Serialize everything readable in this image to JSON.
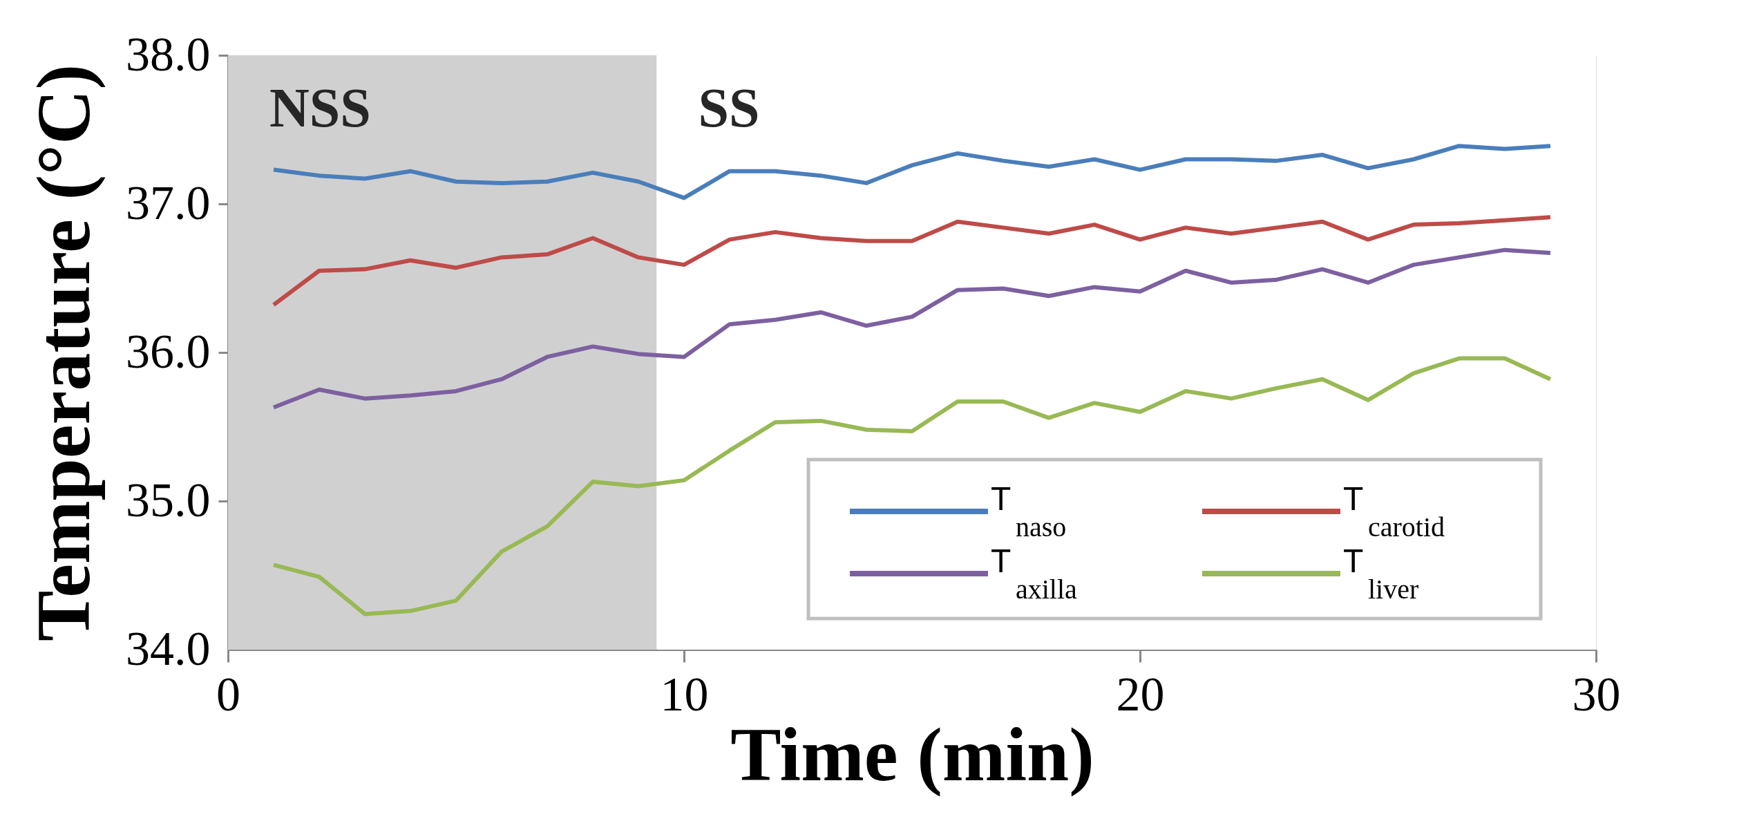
{
  "chart_data": {
    "type": "line",
    "xlabel": "Time (min)",
    "ylabel": "Temperature (°C)",
    "x": [
      1,
      2,
      3,
      4,
      5,
      6,
      7,
      8,
      9,
      10,
      11,
      12,
      13,
      14,
      15,
      16,
      17,
      18,
      19,
      20,
      21,
      22,
      23,
      24,
      25,
      26,
      27,
      28,
      29
    ],
    "series": [
      {
        "name": "T$_{naso}$",
        "color": "#4a7ebb",
        "values": [
          37.23,
          37.19,
          37.17,
          37.22,
          37.15,
          37.14,
          37.15,
          37.21,
          37.15,
          37.04,
          37.22,
          37.22,
          37.19,
          37.14,
          37.26,
          37.34,
          37.29,
          37.25,
          37.3,
          37.23,
          37.3,
          37.3,
          37.29,
          37.33,
          37.24,
          37.3,
          37.39,
          37.37,
          37.39
        ]
      },
      {
        "name": "T$_{carotid}$",
        "color": "#be4b48",
        "values": [
          36.32,
          36.55,
          36.56,
          36.62,
          36.57,
          36.64,
          36.66,
          36.77,
          36.64,
          36.59,
          36.76,
          36.81,
          36.77,
          36.75,
          36.75,
          36.88,
          36.84,
          36.8,
          36.86,
          36.76,
          36.84,
          36.8,
          36.84,
          36.88,
          36.76,
          36.86,
          36.87,
          36.89,
          36.91
        ]
      },
      {
        "name": "T$_{axilla}$",
        "color": "#7d60a0",
        "values": [
          35.63,
          35.75,
          35.69,
          35.71,
          35.74,
          35.82,
          35.97,
          36.04,
          35.99,
          35.97,
          36.19,
          36.22,
          36.27,
          36.18,
          36.24,
          36.42,
          36.43,
          36.38,
          36.44,
          36.41,
          36.55,
          36.47,
          36.49,
          36.56,
          36.47,
          36.59,
          36.64,
          36.69,
          36.67
        ]
      },
      {
        "name": "T$_{liver}$",
        "color": "#98b954",
        "values": [
          34.57,
          34.49,
          34.24,
          34.26,
          34.33,
          34.66,
          34.83,
          35.13,
          35.1,
          35.14,
          35.34,
          35.53,
          35.54,
          35.48,
          35.47,
          35.67,
          35.67,
          35.56,
          35.66,
          35.6,
          35.74,
          35.69,
          35.76,
          35.82,
          35.68,
          35.86,
          35.96,
          35.96,
          35.82
        ]
      }
    ],
    "bands": [
      {
        "axis": "x",
        "from": 0,
        "to": 9.4,
        "label": "NSS",
        "color": "#d0d0d0"
      },
      {
        "axis": "x",
        "from": 9.4,
        "to": 30,
        "label": "SS",
        "color": "#ffffff"
      }
    ],
    "xlim": [
      0,
      30
    ],
    "xticks": [
      0,
      10,
      20,
      30
    ],
    "ylim": [
      34,
      38
    ],
    "yticks": [
      {
        "value": 34,
        "label": "34.0"
      },
      {
        "value": 35,
        "label": "35.0"
      },
      {
        "value": 36,
        "label": "36.0"
      },
      {
        "value": 37,
        "label": "37.0"
      },
      {
        "value": 38,
        "label": "38.0"
      }
    ],
    "grid": false,
    "legend": "bottom right",
    "line_style": "solid",
    "marker": "none"
  }
}
